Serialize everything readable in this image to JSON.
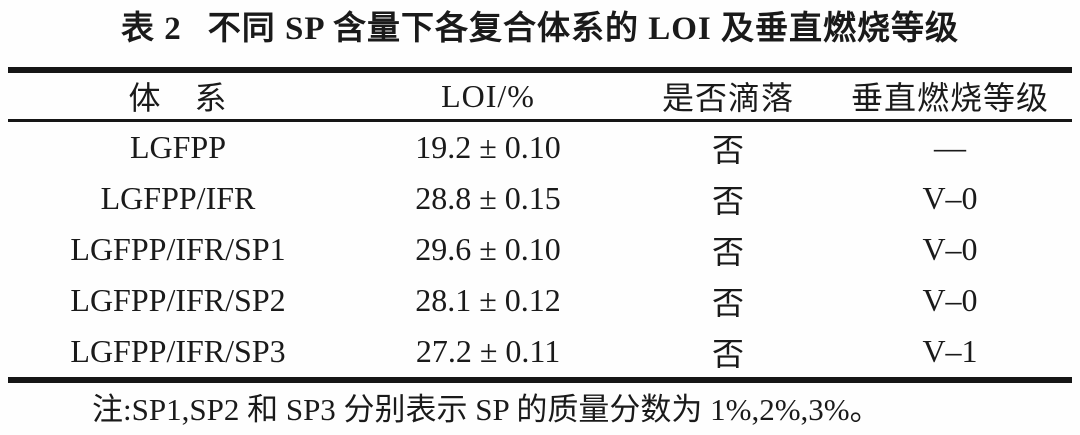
{
  "caption": {
    "label": "表 2",
    "text": "不同 SP 含量下各复合体系的 LOI 及垂直燃烧等级"
  },
  "table": {
    "headers": [
      "体　系",
      "LOI/%",
      "是否滴落",
      "垂直燃烧等级"
    ],
    "rows": [
      [
        "LGFPP",
        "19.2 ± 0.10",
        "否",
        "—"
      ],
      [
        "LGFPP/IFR",
        "28.8 ± 0.15",
        "否",
        "V–0"
      ],
      [
        "LGFPP/IFR/SP1",
        "29.6 ± 0.10",
        "否",
        "V–0"
      ],
      [
        "LGFPP/IFR/SP2",
        "28.1 ± 0.12",
        "否",
        "V–0"
      ],
      [
        "LGFPP/IFR/SP3",
        "27.2 ± 0.11",
        "否",
        "V–1"
      ]
    ]
  },
  "note": "注:SP1,SP2 和 SP3 分别表示 SP 的质量分数为 1%,2%,3%。",
  "colors": {
    "text": "#1a1a1a",
    "rule": "#161616",
    "background": "#fefefe"
  }
}
